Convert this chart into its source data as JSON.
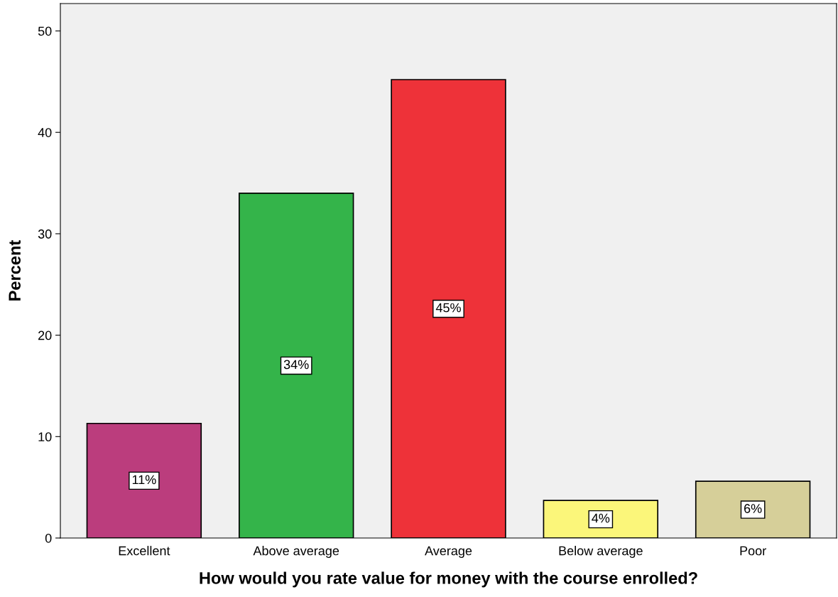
{
  "chart_data": {
    "type": "bar",
    "xlabel": "How would you rate value for money with the course enrolled?",
    "ylabel": "Percent",
    "categories": [
      "Excellent",
      "Above average",
      "Average",
      "Below average",
      "Poor"
    ],
    "values": [
      11.3,
      34.0,
      45.2,
      3.7,
      5.6
    ],
    "value_labels": [
      "11%",
      "34%",
      "45%",
      "4%",
      "6%"
    ],
    "colors": [
      "#bb3d7d",
      "#34b44a",
      "#ee3239",
      "#fbf67a",
      "#d6cf99"
    ],
    "ylim": [
      0,
      52.7
    ],
    "yticks": [
      0,
      10,
      20,
      30,
      40,
      50
    ],
    "grid": false
  }
}
